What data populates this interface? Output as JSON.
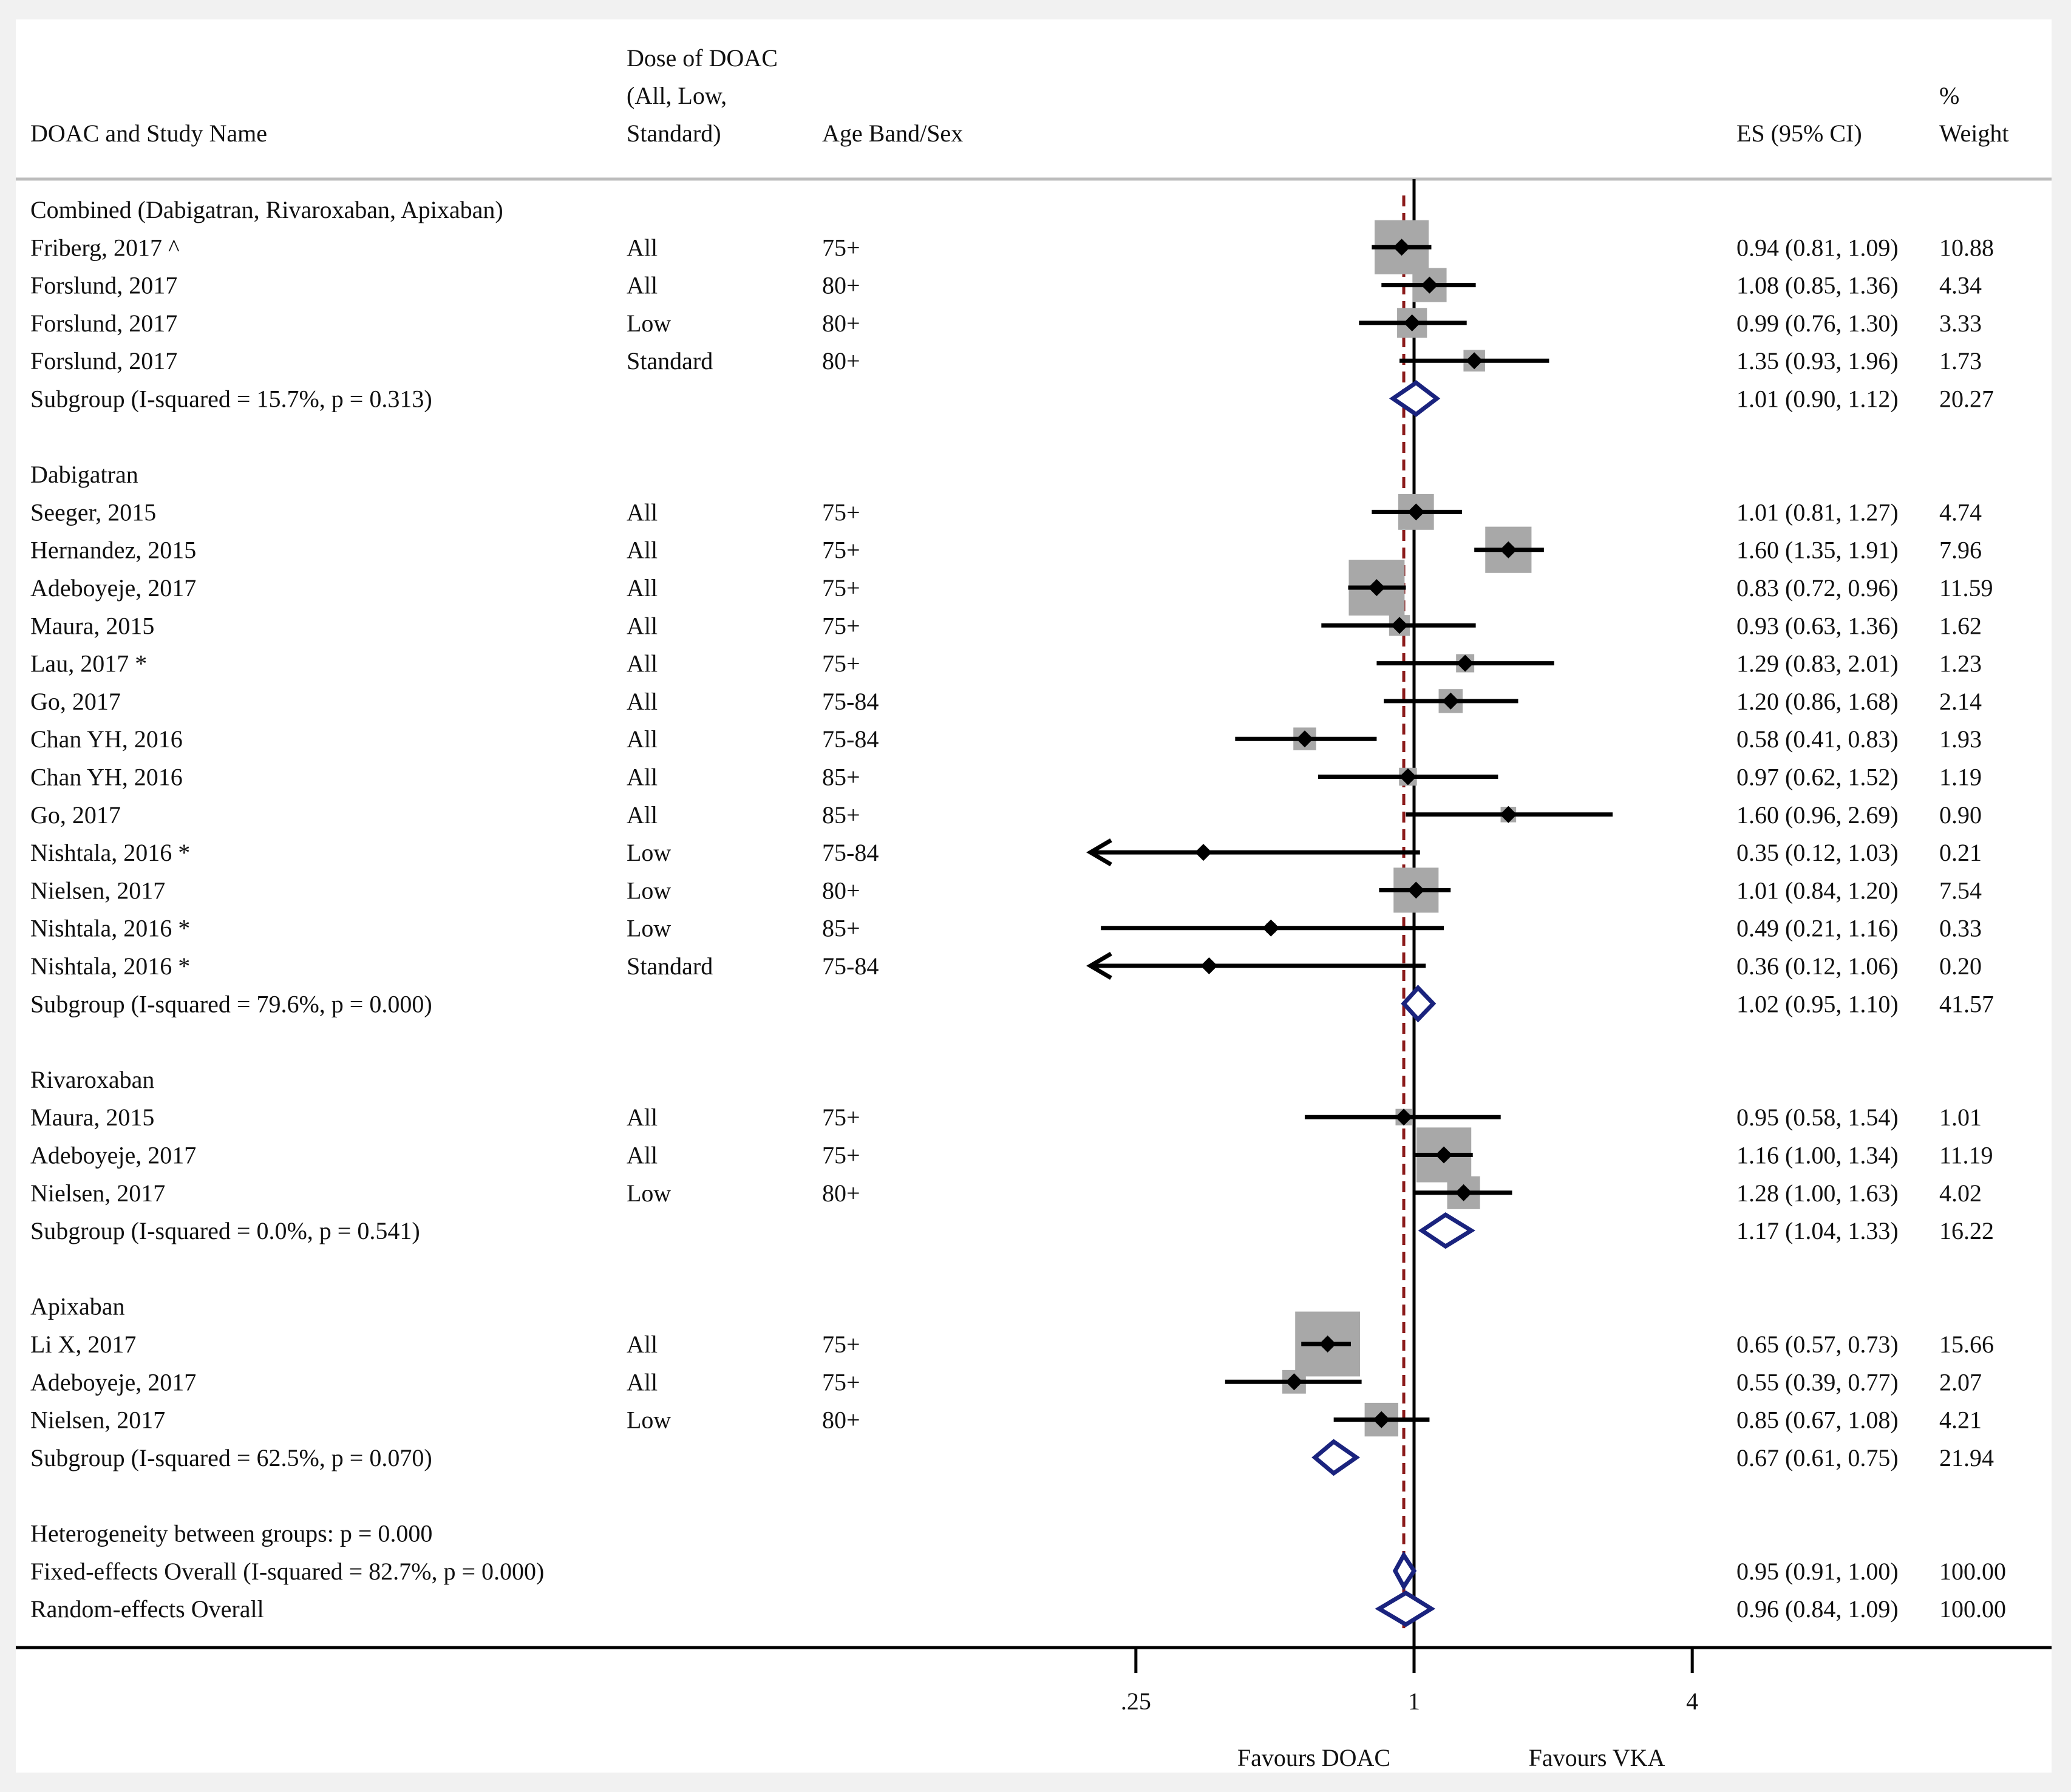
{
  "headers": {
    "study": "DOAC and Study Name",
    "dose_line1": "Dose of DOAC",
    "dose_line2": "(All, Low,",
    "dose_line3": "Standard)",
    "age": "Age Band/Sex",
    "es": "ES (95% CI)",
    "weight_line1": "%",
    "weight_line2": "Weight"
  },
  "chart_data": {
    "type": "forest",
    "scale": "log",
    "xlim": [
      0.1575,
      6.4
    ],
    "reference_line": 1,
    "overall_line": 0.95,
    "colors": {
      "marker": "#000000",
      "box": "#a8a8a8",
      "diamond": "#1a237e",
      "overall_line": "#8b1a1a"
    },
    "x_ticks": [
      {
        "value": 0.25,
        "label": ".25"
      },
      {
        "value": 1,
        "label": "1"
      },
      {
        "value": 4,
        "label": "4"
      }
    ],
    "x_labels": {
      "left": "Favours DOAC",
      "right": "Favours VKA"
    },
    "rows": [
      {
        "kind": "group",
        "label": "Combined (Dabigatran, Rivaroxaban, Apixaban)"
      },
      {
        "kind": "study",
        "label": "Friberg, 2017 ^",
        "dose": "All",
        "age": "75+",
        "es": 0.94,
        "lo": 0.81,
        "hi": 1.09,
        "es_text": "0.94 (0.81, 1.09)",
        "weight": 10.88,
        "weight_text": "10.88"
      },
      {
        "kind": "study",
        "label": "Forslund, 2017",
        "dose": "All",
        "age": "80+",
        "es": 1.08,
        "lo": 0.85,
        "hi": 1.36,
        "es_text": "1.08 (0.85, 1.36)",
        "weight": 4.34,
        "weight_text": "4.34"
      },
      {
        "kind": "study",
        "label": "Forslund, 2017",
        "dose": "Low",
        "age": "80+",
        "es": 0.99,
        "lo": 0.76,
        "hi": 1.3,
        "es_text": "0.99 (0.76, 1.30)",
        "weight": 3.33,
        "weight_text": "3.33"
      },
      {
        "kind": "study",
        "label": "Forslund, 2017",
        "dose": "Standard",
        "age": "80+",
        "es": 1.35,
        "lo": 0.93,
        "hi": 1.96,
        "es_text": "1.35 (0.93, 1.96)",
        "weight": 1.73,
        "weight_text": "1.73"
      },
      {
        "kind": "subgroup",
        "label": "Subgroup (I-squared = 15.7%, p = 0.313)",
        "es": 1.01,
        "lo": 0.9,
        "hi": 1.12,
        "es_text": "1.01 (0.90, 1.12)",
        "weight": 20.27,
        "weight_text": "20.27"
      },
      {
        "kind": "blank"
      },
      {
        "kind": "group",
        "label": "Dabigatran"
      },
      {
        "kind": "study",
        "label": "Seeger, 2015",
        "dose": "All",
        "age": "75+",
        "es": 1.01,
        "lo": 0.81,
        "hi": 1.27,
        "es_text": "1.01 (0.81, 1.27)",
        "weight": 4.74,
        "weight_text": "4.74"
      },
      {
        "kind": "study",
        "label": "Hernandez, 2015",
        "dose": "All",
        "age": "75+",
        "es": 1.6,
        "lo": 1.35,
        "hi": 1.91,
        "es_text": "1.60 (1.35, 1.91)",
        "weight": 7.96,
        "weight_text": "7.96"
      },
      {
        "kind": "study",
        "label": "Adeboyeje, 2017",
        "dose": "All",
        "age": "75+",
        "es": 0.83,
        "lo": 0.72,
        "hi": 0.96,
        "es_text": "0.83 (0.72, 0.96)",
        "weight": 11.59,
        "weight_text": "11.59"
      },
      {
        "kind": "study",
        "label": "Maura, 2015",
        "dose": "All",
        "age": "75+",
        "es": 0.93,
        "lo": 0.63,
        "hi": 1.36,
        "es_text": "0.93 (0.63, 1.36)",
        "weight": 1.62,
        "weight_text": "1.62"
      },
      {
        "kind": "study",
        "label": "Lau, 2017 *",
        "dose": "All",
        "age": "75+",
        "es": 1.29,
        "lo": 0.83,
        "hi": 2.01,
        "es_text": "1.29 (0.83, 2.01)",
        "weight": 1.23,
        "weight_text": "1.23"
      },
      {
        "kind": "study",
        "label": "Go, 2017",
        "dose": "All",
        "age": "75-84",
        "es": 1.2,
        "lo": 0.86,
        "hi": 1.68,
        "es_text": "1.20 (0.86, 1.68)",
        "weight": 2.14,
        "weight_text": "2.14"
      },
      {
        "kind": "study",
        "label": "Chan YH, 2016",
        "dose": "All",
        "age": "75-84",
        "es": 0.58,
        "lo": 0.41,
        "hi": 0.83,
        "es_text": "0.58 (0.41, 0.83)",
        "weight": 1.93,
        "weight_text": "1.93"
      },
      {
        "kind": "study",
        "label": "Chan YH, 2016",
        "dose": "All",
        "age": "85+",
        "es": 0.97,
        "lo": 0.62,
        "hi": 1.52,
        "es_text": "0.97 (0.62, 1.52)",
        "weight": 1.19,
        "weight_text": "1.19"
      },
      {
        "kind": "study",
        "label": "Go, 2017",
        "dose": "All",
        "age": "85+",
        "es": 1.6,
        "lo": 0.96,
        "hi": 2.69,
        "es_text": "1.60 (0.96, 2.69)",
        "weight": 0.9,
        "weight_text": "0.90"
      },
      {
        "kind": "study",
        "label": "Nishtala, 2016 *",
        "dose": "Low",
        "age": "75-84",
        "es": 0.35,
        "lo": 0.12,
        "hi": 1.03,
        "es_text": "0.35 (0.12, 1.03)",
        "weight": 0.21,
        "weight_text": "0.21"
      },
      {
        "kind": "study",
        "label": "Nielsen, 2017",
        "dose": "Low",
        "age": "80+",
        "es": 1.01,
        "lo": 0.84,
        "hi": 1.2,
        "es_text": "1.01 (0.84, 1.20)",
        "weight": 7.54,
        "weight_text": "7.54"
      },
      {
        "kind": "study",
        "label": "Nishtala, 2016 *",
        "dose": "Low",
        "age": "85+",
        "es": 0.49,
        "lo": 0.21,
        "hi": 1.16,
        "es_text": "0.49 (0.21, 1.16)",
        "weight": 0.33,
        "weight_text": "0.33"
      },
      {
        "kind": "study",
        "label": "Nishtala, 2016 *",
        "dose": "Standard",
        "age": "75-84",
        "es": 0.36,
        "lo": 0.12,
        "hi": 1.06,
        "es_text": "0.36 (0.12, 1.06)",
        "weight": 0.2,
        "weight_text": "0.20"
      },
      {
        "kind": "subgroup",
        "label": "Subgroup (I-squared = 79.6%, p = 0.000)",
        "es": 1.02,
        "lo": 0.95,
        "hi": 1.1,
        "es_text": "1.02 (0.95, 1.10)",
        "weight": 41.57,
        "weight_text": "41.57"
      },
      {
        "kind": "blank"
      },
      {
        "kind": "group",
        "label": "Rivaroxaban"
      },
      {
        "kind": "study",
        "label": "Maura, 2015",
        "dose": "All",
        "age": "75+",
        "es": 0.95,
        "lo": 0.58,
        "hi": 1.54,
        "es_text": "0.95 (0.58, 1.54)",
        "weight": 1.01,
        "weight_text": "1.01"
      },
      {
        "kind": "study",
        "label": "Adeboyeje, 2017",
        "dose": "All",
        "age": "75+",
        "es": 1.16,
        "lo": 1.0,
        "hi": 1.34,
        "es_text": "1.16 (1.00, 1.34)",
        "weight": 11.19,
        "weight_text": "11.19"
      },
      {
        "kind": "study",
        "label": "Nielsen, 2017",
        "dose": "Low",
        "age": "80+",
        "es": 1.28,
        "lo": 1.0,
        "hi": 1.63,
        "es_text": "1.28 (1.00, 1.63)",
        "weight": 4.02,
        "weight_text": "4.02"
      },
      {
        "kind": "subgroup",
        "label": "Subgroup (I-squared = 0.0%, p = 0.541)",
        "es": 1.17,
        "lo": 1.04,
        "hi": 1.33,
        "es_text": "1.17 (1.04, 1.33)",
        "weight": 16.22,
        "weight_text": "16.22"
      },
      {
        "kind": "blank"
      },
      {
        "kind": "group",
        "label": "Apixaban"
      },
      {
        "kind": "study",
        "label": "Li X, 2017",
        "dose": "All",
        "age": "75+",
        "es": 0.65,
        "lo": 0.57,
        "hi": 0.73,
        "es_text": "0.65 (0.57, 0.73)",
        "weight": 15.66,
        "weight_text": "15.66"
      },
      {
        "kind": "study",
        "label": "Adeboyeje, 2017",
        "dose": "All",
        "age": "75+",
        "es": 0.55,
        "lo": 0.39,
        "hi": 0.77,
        "es_text": "0.55 (0.39, 0.77)",
        "weight": 2.07,
        "weight_text": "2.07"
      },
      {
        "kind": "study",
        "label": "Nielsen, 2017",
        "dose": "Low",
        "age": "80+",
        "es": 0.85,
        "lo": 0.67,
        "hi": 1.08,
        "es_text": "0.85 (0.67, 1.08)",
        "weight": 4.21,
        "weight_text": "4.21"
      },
      {
        "kind": "subgroup",
        "label": "Subgroup (I-squared = 62.5%, p = 0.070)",
        "es": 0.67,
        "lo": 0.61,
        "hi": 0.75,
        "es_text": "0.67 (0.61, 0.75)",
        "weight": 21.94,
        "weight_text": "21.94"
      },
      {
        "kind": "blank"
      },
      {
        "kind": "group",
        "label": "Heterogeneity between groups: p = 0.000"
      },
      {
        "kind": "overall",
        "label": "Fixed-effects Overall (I-squared = 82.7%, p = 0.000)",
        "es": 0.95,
        "lo": 0.91,
        "hi": 1.0,
        "es_text": "0.95 (0.91, 1.00)",
        "weight": 100.0,
        "weight_text": "100.00"
      },
      {
        "kind": "overall",
        "label": "Random-effects Overall",
        "es": 0.96,
        "lo": 0.84,
        "hi": 1.09,
        "es_text": "0.96 (0.84, 1.09)",
        "weight": 100.0,
        "weight_text": "100.00"
      }
    ]
  }
}
